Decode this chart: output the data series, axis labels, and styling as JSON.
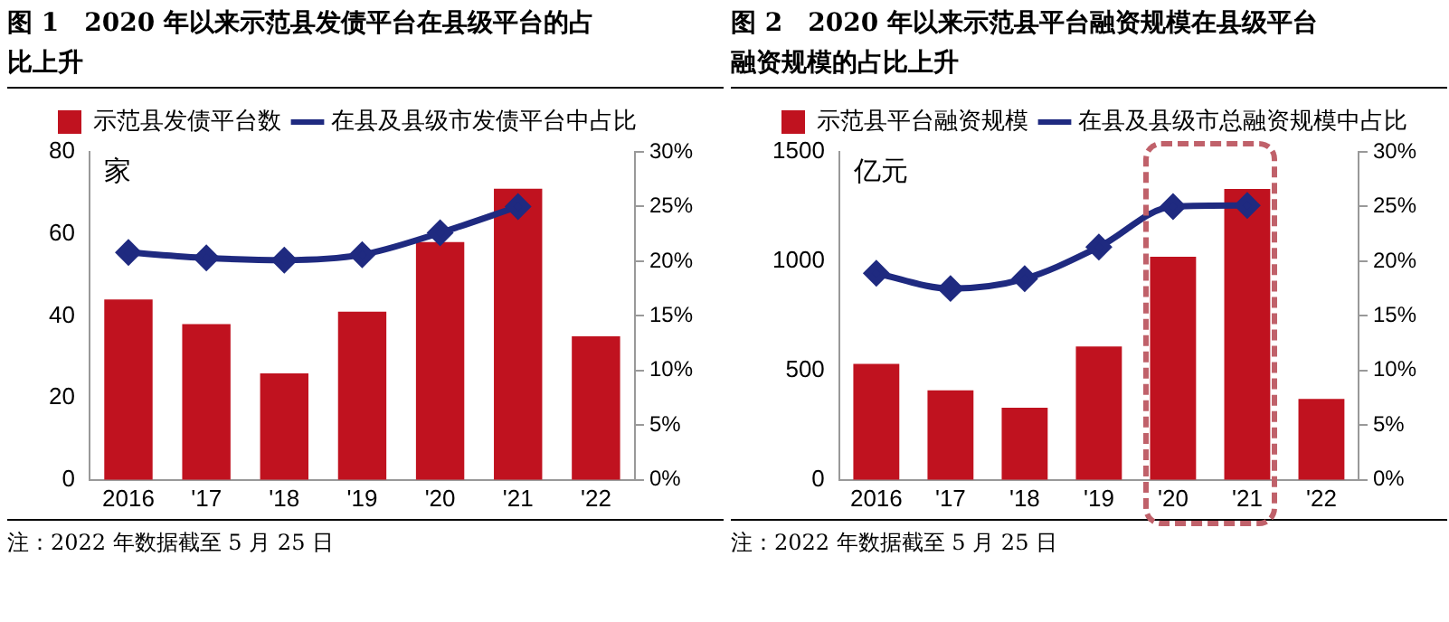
{
  "chart_data": [
    {
      "type": "bar",
      "title": "图 1　2020 年以来示范县发债平台在县级平台的占比上升",
      "ylabel": "家",
      "categories": [
        "2016",
        "'17",
        "'18",
        "'19",
        "'20",
        "'21",
        "'22"
      ],
      "series": [
        {
          "name": "示范县发债平台数",
          "color": "#c0121f",
          "values": [
            44,
            38,
            26,
            41,
            58,
            71,
            35
          ]
        },
        {
          "name": "在县及县级市发债平台中占比",
          "type": "line",
          "axis": "y2",
          "color": "#1f2a80",
          "marker": "diamond",
          "values": [
            20.8,
            20.3,
            20.1,
            20.6,
            22.6,
            25.0,
            null
          ]
        }
      ],
      "ylim": [
        0,
        80
      ],
      "yticks": [
        0,
        20,
        40,
        60,
        80
      ],
      "y2lim": [
        0,
        30
      ],
      "y2ticks": [
        {
          "value": 0,
          "label": "0%"
        },
        {
          "value": 5,
          "label": "5%"
        },
        {
          "value": 10,
          "label": "10%"
        },
        {
          "value": 15,
          "label": "15%"
        },
        {
          "value": 20,
          "label": "20%"
        },
        {
          "value": 25,
          "label": "25%"
        },
        {
          "value": 30,
          "label": "30%"
        }
      ],
      "legend": "top",
      "grid": false,
      "annotations": [
        "注：2022 年数据截至 5 月 25 日"
      ]
    },
    {
      "type": "bar",
      "title": "图 2　2020 年以来示范县平台融资规模在县级平台融资规模的占比上升",
      "ylabel": "亿元",
      "categories": [
        "2016",
        "'17",
        "'18",
        "'19",
        "'20",
        "'21",
        "'22"
      ],
      "series": [
        {
          "name": "示范县平台融资规模",
          "color": "#c0121f",
          "values": [
            530,
            410,
            330,
            610,
            1020,
            1330,
            370
          ]
        },
        {
          "name": "在县及县级市总融资规模中占比",
          "type": "line",
          "axis": "y2",
          "color": "#1f2a80",
          "marker": "diamond",
          "values": [
            18.9,
            17.5,
            18.4,
            21.3,
            25.0,
            25.1,
            null
          ]
        }
      ],
      "ylim": [
        0,
        1500
      ],
      "yticks": [
        0,
        500,
        1000,
        1500
      ],
      "y2lim": [
        0,
        30
      ],
      "y2ticks": [
        {
          "value": 0,
          "label": "0%"
        },
        {
          "value": 5,
          "label": "5%"
        },
        {
          "value": 10,
          "label": "10%"
        },
        {
          "value": 15,
          "label": "15%"
        },
        {
          "value": 20,
          "label": "20%"
        },
        {
          "value": 25,
          "label": "25%"
        },
        {
          "value": 30,
          "label": "30%"
        }
      ],
      "legend": "top",
      "grid": false,
      "annotations": [
        "注：2022 年数据截至 5 月 25 日"
      ]
    }
  ]
}
